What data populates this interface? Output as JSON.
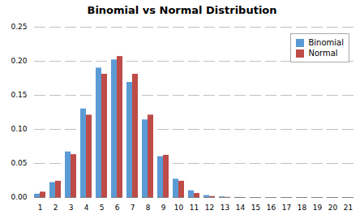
{
  "chart_data": {
    "type": "bar",
    "title": "Binomial vs Normal Distribution",
    "categories": [
      1,
      2,
      3,
      4,
      5,
      6,
      7,
      8,
      9,
      10,
      11,
      12,
      13,
      14,
      15,
      16,
      17,
      18,
      19,
      20,
      21
    ],
    "series": [
      {
        "name": "Binomial",
        "color": "#5B9BD5",
        "values": [
          0.005,
          0.022,
          0.067,
          0.13,
          0.19,
          0.202,
          0.169,
          0.114,
          0.06,
          0.027,
          0.01,
          0.003,
          0.001,
          0.0002,
          0.0,
          0.0,
          0.0,
          0.0,
          0.0,
          0.0,
          0.0
        ]
      },
      {
        "name": "Normal",
        "color": "#BE4B48",
        "values": [
          0.008,
          0.024,
          0.063,
          0.121,
          0.181,
          0.207,
          0.181,
          0.121,
          0.062,
          0.024,
          0.006,
          0.0015,
          0.0003,
          0.0,
          0.0,
          0.0,
          0.0,
          0.0,
          0.0,
          0.0,
          0.0
        ]
      }
    ],
    "ylim": [
      0,
      0.25
    ],
    "yticks": [
      {
        "value": 0,
        "label": "0.00"
      },
      0.05,
      {
        "value": 0.1,
        "label": "0.10"
      },
      0.15,
      {
        "value": 0.2,
        "label": "0.20"
      },
      0.25
    ],
    "grid": true,
    "legend": "upper right"
  }
}
